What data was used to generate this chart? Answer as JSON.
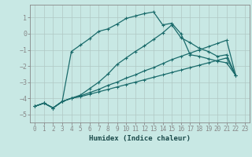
{
  "xlabel": "Humidex (Indice chaleur)",
  "ylabel": "",
  "background_color": "#c8e8e4",
  "grid_color": "#b0c8c4",
  "line_color": "#1a6b6b",
  "xlim": [
    -0.5,
    23.5
  ],
  "ylim": [
    -5.5,
    1.8
  ],
  "xticks": [
    0,
    1,
    2,
    3,
    4,
    5,
    6,
    7,
    8,
    9,
    10,
    11,
    12,
    13,
    14,
    15,
    16,
    17,
    18,
    19,
    20,
    21,
    22,
    23
  ],
  "yticks": [
    -5,
    -4,
    -3,
    -2,
    -1,
    0,
    1
  ],
  "line_curved_x": [
    0,
    1,
    2,
    3,
    4,
    5,
    6,
    7,
    8,
    9,
    10,
    11,
    12,
    13,
    14,
    15,
    16,
    17,
    18,
    19,
    20,
    21,
    22
  ],
  "line_curved_y": [
    -4.5,
    -4.3,
    -4.6,
    -4.2,
    -1.1,
    -0.7,
    -0.3,
    0.15,
    0.3,
    0.6,
    0.95,
    1.1,
    1.25,
    1.35,
    0.55,
    0.65,
    0.0,
    -1.3,
    -1.4,
    -1.55,
    -1.7,
    -1.8,
    -2.6
  ],
  "line_mid_x": [
    0,
    1,
    2,
    3,
    4,
    5,
    6,
    7,
    8,
    9,
    10,
    11,
    12,
    13,
    14,
    15,
    16,
    17,
    18,
    19,
    20,
    21,
    22
  ],
  "line_mid_y": [
    -4.5,
    -4.3,
    -4.6,
    -4.2,
    -4.0,
    -3.8,
    -3.4,
    -3.0,
    -2.5,
    -1.9,
    -1.5,
    -1.1,
    -0.75,
    -0.35,
    0.05,
    0.55,
    -0.25,
    -0.55,
    -0.9,
    -1.1,
    -1.4,
    -1.3,
    -2.6
  ],
  "line_low1_x": [
    0,
    1,
    2,
    3,
    4,
    5,
    6,
    7,
    8,
    9,
    10,
    11,
    12,
    13,
    14,
    15,
    16,
    17,
    18,
    19,
    20,
    21,
    22
  ],
  "line_low1_y": [
    -4.5,
    -4.3,
    -4.6,
    -4.2,
    -4.0,
    -3.85,
    -3.65,
    -3.45,
    -3.2,
    -3.0,
    -2.75,
    -2.55,
    -2.3,
    -2.1,
    -1.85,
    -1.6,
    -1.4,
    -1.2,
    -1.0,
    -0.8,
    -0.6,
    -0.4,
    -2.6
  ],
  "line_low2_x": [
    0,
    1,
    2,
    3,
    4,
    5,
    6,
    7,
    8,
    9,
    10,
    11,
    12,
    13,
    14,
    15,
    16,
    17,
    18,
    19,
    20,
    21,
    22
  ],
  "line_low2_y": [
    -4.5,
    -4.3,
    -4.6,
    -4.2,
    -4.0,
    -3.9,
    -3.75,
    -3.6,
    -3.45,
    -3.3,
    -3.15,
    -3.0,
    -2.85,
    -2.7,
    -2.55,
    -2.4,
    -2.25,
    -2.1,
    -1.95,
    -1.8,
    -1.65,
    -1.5,
    -2.6
  ]
}
